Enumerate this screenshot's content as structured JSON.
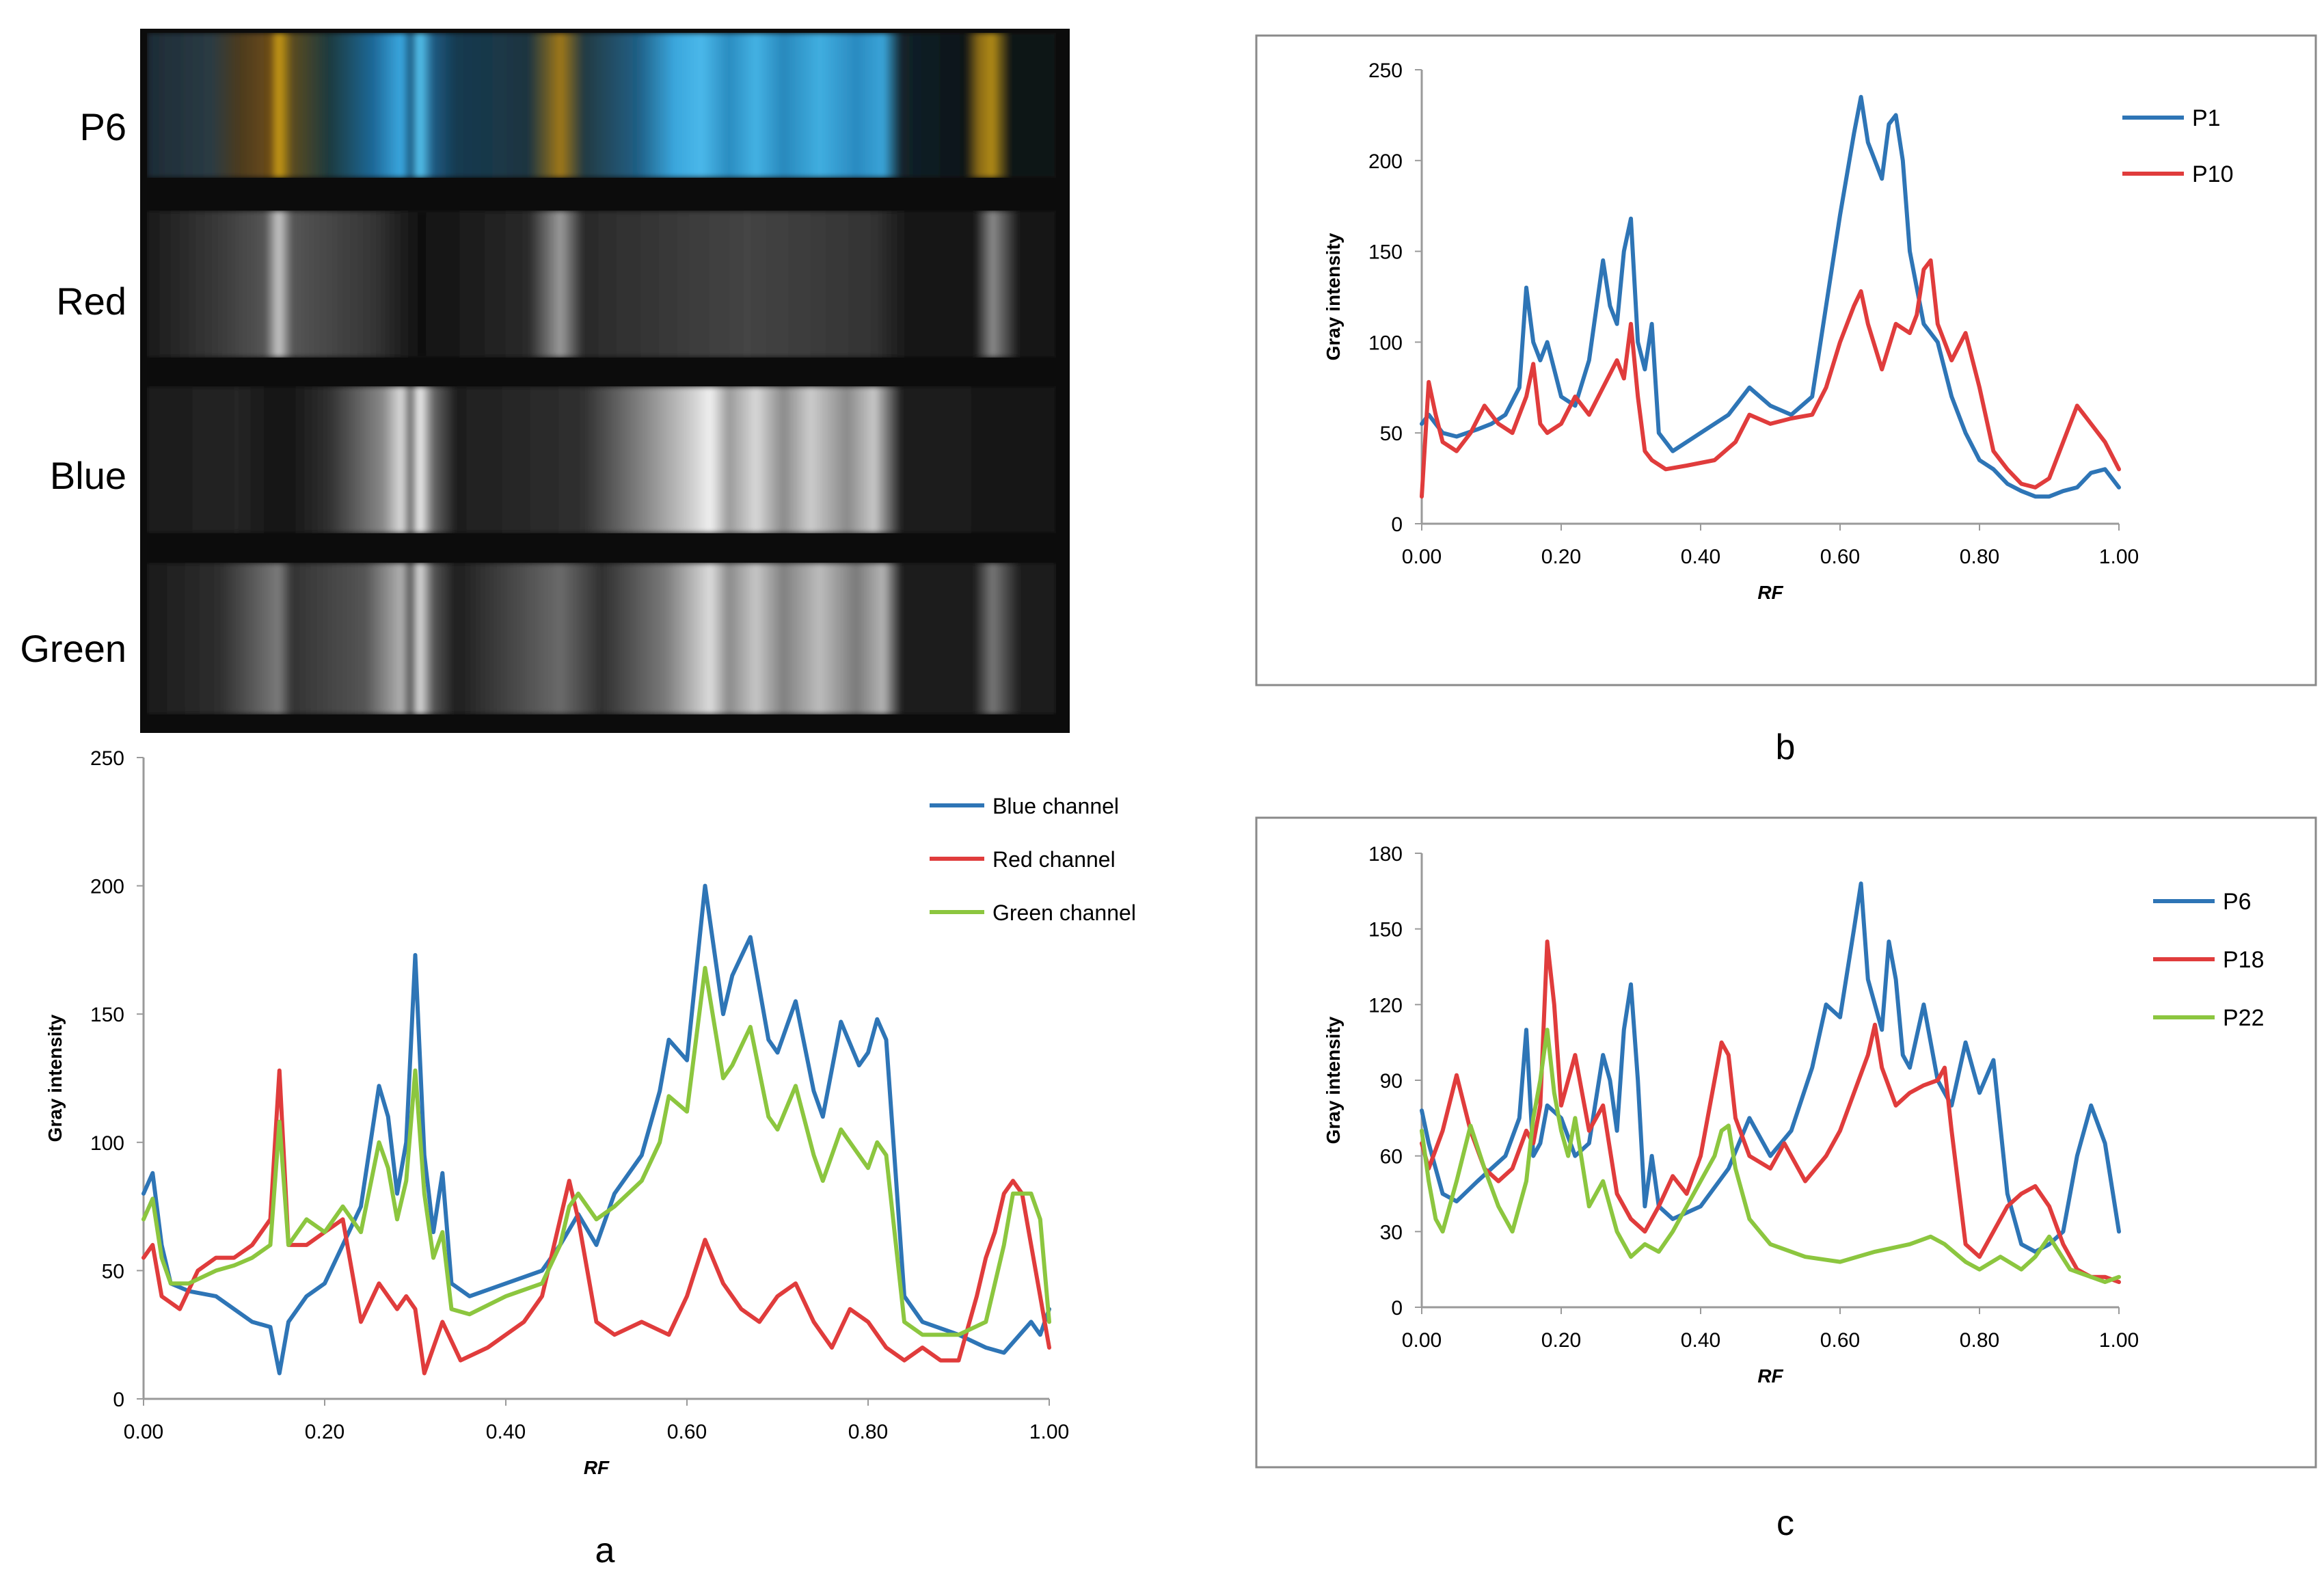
{
  "figure": {
    "strip_labels": [
      "P6",
      "Red",
      "Blue",
      "Green"
    ],
    "panel_letters": [
      "a",
      "b",
      "c"
    ]
  },
  "colors": {
    "blue": "#2e75b6",
    "red": "#e03c3c",
    "green": "#8cc63f"
  },
  "chart_data": [
    {
      "id": "a",
      "type": "line",
      "title": "",
      "xlabel": "RF",
      "ylabel": "Gray intensity",
      "xlim": [
        0,
        1
      ],
      "ylim": [
        0,
        250
      ],
      "xticks": [
        "0.00",
        "0.20",
        "0.40",
        "0.60",
        "0.80",
        "1.00"
      ],
      "yticks": [
        "0",
        "50",
        "100",
        "150",
        "200",
        "250"
      ],
      "legend_position": "top-right",
      "series": [
        {
          "name": "Blue channel",
          "color": "#2e75b6",
          "x": [
            0,
            0.01,
            0.02,
            0.03,
            0.05,
            0.08,
            0.1,
            0.12,
            0.14,
            0.15,
            0.16,
            0.18,
            0.2,
            0.22,
            0.24,
            0.26,
            0.27,
            0.28,
            0.29,
            0.3,
            0.31,
            0.32,
            0.33,
            0.34,
            0.36,
            0.4,
            0.44,
            0.46,
            0.48,
            0.5,
            0.52,
            0.55,
            0.57,
            0.58,
            0.6,
            0.62,
            0.64,
            0.65,
            0.67,
            0.69,
            0.7,
            0.72,
            0.74,
            0.75,
            0.77,
            0.79,
            0.8,
            0.81,
            0.82,
            0.84,
            0.86,
            0.9,
            0.93,
            0.95,
            0.96,
            0.98,
            0.99,
            1
          ],
          "y": [
            80,
            88,
            60,
            45,
            42,
            40,
            35,
            30,
            28,
            10,
            30,
            40,
            45,
            60,
            75,
            122,
            110,
            80,
            100,
            173,
            95,
            65,
            88,
            45,
            40,
            45,
            50,
            60,
            72,
            60,
            80,
            95,
            120,
            140,
            132,
            200,
            150,
            165,
            180,
            140,
            135,
            155,
            120,
            110,
            147,
            130,
            135,
            148,
            140,
            40,
            30,
            25,
            20,
            18,
            22,
            30,
            25,
            35
          ]
        },
        {
          "name": "Red channel",
          "color": "#e03c3c",
          "x": [
            0,
            0.01,
            0.02,
            0.04,
            0.06,
            0.08,
            0.1,
            0.12,
            0.14,
            0.15,
            0.16,
            0.18,
            0.2,
            0.22,
            0.24,
            0.26,
            0.28,
            0.29,
            0.3,
            0.31,
            0.33,
            0.35,
            0.38,
            0.4,
            0.42,
            0.44,
            0.46,
            0.47,
            0.48,
            0.5,
            0.52,
            0.55,
            0.58,
            0.6,
            0.62,
            0.64,
            0.66,
            0.68,
            0.7,
            0.72,
            0.74,
            0.76,
            0.78,
            0.8,
            0.82,
            0.84,
            0.86,
            0.88,
            0.9,
            0.92,
            0.93,
            0.94,
            0.95,
            0.96,
            0.97,
            0.98,
            0.99,
            1
          ],
          "y": [
            55,
            60,
            40,
            35,
            50,
            55,
            55,
            60,
            70,
            128,
            60,
            60,
            65,
            70,
            30,
            45,
            35,
            40,
            35,
            10,
            30,
            15,
            20,
            25,
            30,
            40,
            70,
            85,
            70,
            30,
            25,
            30,
            25,
            40,
            62,
            45,
            35,
            30,
            40,
            45,
            30,
            20,
            35,
            30,
            20,
            15,
            20,
            15,
            15,
            40,
            55,
            65,
            80,
            85,
            80,
            60,
            40,
            20
          ]
        },
        {
          "name": "Green channel",
          "color": "#8cc63f",
          "x": [
            0,
            0.01,
            0.02,
            0.03,
            0.05,
            0.08,
            0.1,
            0.12,
            0.14,
            0.15,
            0.16,
            0.18,
            0.2,
            0.22,
            0.24,
            0.26,
            0.27,
            0.28,
            0.29,
            0.3,
            0.31,
            0.32,
            0.33,
            0.34,
            0.36,
            0.4,
            0.44,
            0.46,
            0.47,
            0.48,
            0.5,
            0.52,
            0.55,
            0.57,
            0.58,
            0.6,
            0.62,
            0.64,
            0.65,
            0.67,
            0.69,
            0.7,
            0.72,
            0.74,
            0.75,
            0.77,
            0.79,
            0.8,
            0.81,
            0.82,
            0.84,
            0.86,
            0.9,
            0.93,
            0.95,
            0.96,
            0.98,
            0.99,
            1
          ],
          "y": [
            70,
            78,
            55,
            45,
            45,
            50,
            52,
            55,
            60,
            108,
            60,
            70,
            65,
            75,
            65,
            100,
            90,
            70,
            85,
            128,
            80,
            55,
            65,
            35,
            33,
            40,
            45,
            60,
            75,
            80,
            70,
            75,
            85,
            100,
            118,
            112,
            168,
            125,
            130,
            145,
            110,
            105,
            122,
            95,
            85,
            105,
            95,
            90,
            100,
            95,
            30,
            25,
            25,
            30,
            60,
            80,
            80,
            70,
            30
          ]
        }
      ]
    },
    {
      "id": "b",
      "type": "line",
      "title": "",
      "xlabel": "RF",
      "ylabel": "Gray intensity",
      "xlim": [
        0,
        1
      ],
      "ylim": [
        0,
        250
      ],
      "xticks": [
        "0.00",
        "0.20",
        "0.40",
        "0.60",
        "0.80",
        "1.00"
      ],
      "yticks": [
        "0",
        "50",
        "100",
        "150",
        "200",
        "250"
      ],
      "legend_position": "top-right",
      "series": [
        {
          "name": "P1",
          "color": "#2e75b6",
          "x": [
            0,
            0.01,
            0.03,
            0.05,
            0.08,
            0.1,
            0.12,
            0.14,
            0.15,
            0.16,
            0.17,
            0.18,
            0.2,
            0.22,
            0.24,
            0.26,
            0.27,
            0.28,
            0.29,
            0.3,
            0.31,
            0.32,
            0.33,
            0.34,
            0.36,
            0.4,
            0.44,
            0.47,
            0.5,
            0.53,
            0.56,
            0.58,
            0.6,
            0.62,
            0.63,
            0.64,
            0.66,
            0.67,
            0.68,
            0.69,
            0.7,
            0.72,
            0.74,
            0.76,
            0.78,
            0.8,
            0.82,
            0.84,
            0.86,
            0.88,
            0.9,
            0.92,
            0.94,
            0.96,
            0.98,
            1
          ],
          "y": [
            55,
            60,
            50,
            48,
            52,
            55,
            60,
            75,
            130,
            100,
            90,
            100,
            70,
            65,
            90,
            145,
            120,
            110,
            150,
            168,
            100,
            85,
            110,
            50,
            40,
            50,
            60,
            75,
            65,
            60,
            70,
            120,
            170,
            215,
            235,
            210,
            190,
            220,
            225,
            200,
            150,
            110,
            100,
            70,
            50,
            35,
            30,
            22,
            18,
            15,
            15,
            18,
            20,
            28,
            30,
            20
          ]
        },
        {
          "name": "P10",
          "color": "#e03c3c",
          "x": [
            0,
            0.01,
            0.02,
            0.03,
            0.05,
            0.07,
            0.09,
            0.11,
            0.13,
            0.15,
            0.16,
            0.17,
            0.18,
            0.2,
            0.22,
            0.24,
            0.26,
            0.28,
            0.29,
            0.3,
            0.31,
            0.32,
            0.33,
            0.35,
            0.38,
            0.42,
            0.45,
            0.47,
            0.5,
            0.53,
            0.56,
            0.58,
            0.6,
            0.62,
            0.63,
            0.64,
            0.66,
            0.68,
            0.7,
            0.71,
            0.72,
            0.73,
            0.74,
            0.76,
            0.78,
            0.8,
            0.82,
            0.84,
            0.86,
            0.88,
            0.9,
            0.92,
            0.94,
            0.96,
            0.98,
            1
          ],
          "y": [
            15,
            78,
            60,
            45,
            40,
            50,
            65,
            55,
            50,
            70,
            88,
            55,
            50,
            55,
            70,
            60,
            75,
            90,
            80,
            110,
            70,
            40,
            35,
            30,
            32,
            35,
            45,
            60,
            55,
            58,
            60,
            75,
            100,
            120,
            128,
            110,
            85,
            110,
            105,
            115,
            140,
            145,
            110,
            90,
            105,
            75,
            40,
            30,
            22,
            20,
            25,
            45,
            65,
            55,
            45,
            30
          ]
        }
      ]
    },
    {
      "id": "c",
      "type": "line",
      "title": "",
      "xlabel": "RF",
      "ylabel": "Gray intensity",
      "xlim": [
        0,
        1
      ],
      "ylim": [
        0,
        180
      ],
      "xticks": [
        "0.00",
        "0.20",
        "0.40",
        "0.60",
        "0.80",
        "1.00"
      ],
      "yticks": [
        "0",
        "30",
        "60",
        "90",
        "120",
        "150",
        "180"
      ],
      "legend_position": "top-right",
      "series": [
        {
          "name": "P6",
          "color": "#2e75b6",
          "x": [
            0,
            0.01,
            0.03,
            0.05,
            0.08,
            0.1,
            0.12,
            0.14,
            0.15,
            0.16,
            0.17,
            0.18,
            0.2,
            0.22,
            0.24,
            0.26,
            0.27,
            0.28,
            0.29,
            0.3,
            0.31,
            0.32,
            0.33,
            0.34,
            0.36,
            0.4,
            0.44,
            0.47,
            0.5,
            0.53,
            0.56,
            0.58,
            0.6,
            0.62,
            0.63,
            0.64,
            0.66,
            0.67,
            0.68,
            0.69,
            0.7,
            0.72,
            0.74,
            0.76,
            0.78,
            0.8,
            0.82,
            0.84,
            0.86,
            0.88,
            0.9,
            0.92,
            0.94,
            0.96,
            0.98,
            1
          ],
          "y": [
            78,
            65,
            45,
            42,
            50,
            55,
            60,
            75,
            110,
            60,
            65,
            80,
            75,
            60,
            65,
            100,
            90,
            70,
            110,
            128,
            90,
            40,
            60,
            40,
            35,
            40,
            55,
            75,
            60,
            70,
            95,
            120,
            115,
            150,
            168,
            130,
            110,
            145,
            130,
            100,
            95,
            120,
            90,
            80,
            105,
            85,
            98,
            45,
            25,
            22,
            25,
            30,
            60,
            80,
            65,
            30
          ]
        },
        {
          "name": "P18",
          "color": "#e03c3c",
          "x": [
            0,
            0.01,
            0.03,
            0.05,
            0.07,
            0.09,
            0.11,
            0.13,
            0.15,
            0.16,
            0.17,
            0.18,
            0.19,
            0.2,
            0.22,
            0.24,
            0.26,
            0.28,
            0.3,
            0.32,
            0.34,
            0.36,
            0.38,
            0.4,
            0.42,
            0.43,
            0.44,
            0.45,
            0.47,
            0.5,
            0.52,
            0.55,
            0.58,
            0.6,
            0.62,
            0.64,
            0.65,
            0.66,
            0.68,
            0.7,
            0.72,
            0.74,
            0.75,
            0.76,
            0.78,
            0.8,
            0.82,
            0.84,
            0.86,
            0.88,
            0.9,
            0.92,
            0.94,
            0.96,
            0.98,
            1
          ],
          "y": [
            65,
            55,
            70,
            92,
            70,
            55,
            50,
            55,
            70,
            65,
            80,
            145,
            120,
            80,
            100,
            70,
            80,
            45,
            35,
            30,
            40,
            52,
            45,
            60,
            90,
            105,
            100,
            75,
            60,
            55,
            65,
            50,
            60,
            70,
            85,
            100,
            112,
            95,
            80,
            85,
            88,
            90,
            95,
            70,
            25,
            20,
            30,
            40,
            45,
            48,
            40,
            25,
            15,
            12,
            12,
            10
          ]
        },
        {
          "name": "P22",
          "color": "#8cc63f",
          "x": [
            0,
            0.01,
            0.02,
            0.03,
            0.05,
            0.07,
            0.09,
            0.11,
            0.13,
            0.15,
            0.16,
            0.17,
            0.18,
            0.19,
            0.2,
            0.21,
            0.22,
            0.24,
            0.26,
            0.28,
            0.3,
            0.32,
            0.34,
            0.36,
            0.38,
            0.4,
            0.42,
            0.43,
            0.44,
            0.45,
            0.47,
            0.5,
            0.55,
            0.6,
            0.65,
            0.7,
            0.73,
            0.75,
            0.78,
            0.8,
            0.83,
            0.86,
            0.88,
            0.9,
            0.93,
            0.96,
            0.98,
            1
          ],
          "y": [
            70,
            50,
            35,
            30,
            50,
            72,
            55,
            40,
            30,
            50,
            75,
            90,
            110,
            85,
            70,
            60,
            75,
            40,
            50,
            30,
            20,
            25,
            22,
            30,
            40,
            50,
            60,
            70,
            72,
            55,
            35,
            25,
            20,
            18,
            22,
            25,
            28,
            25,
            18,
            15,
            20,
            15,
            20,
            28,
            15,
            12,
            10,
            12
          ]
        }
      ]
    }
  ]
}
